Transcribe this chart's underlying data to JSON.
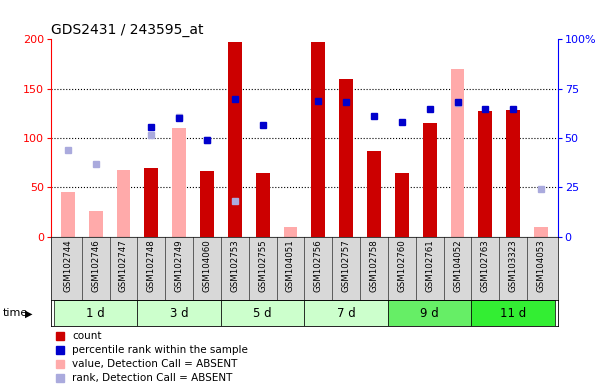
{
  "title": "GDS2431 / 243595_at",
  "samples": [
    "GSM102744",
    "GSM102746",
    "GSM102747",
    "GSM102748",
    "GSM102749",
    "GSM104060",
    "GSM102753",
    "GSM102755",
    "GSM104051",
    "GSM102756",
    "GSM102757",
    "GSM102758",
    "GSM102760",
    "GSM102761",
    "GSM104052",
    "GSM102763",
    "GSM103323",
    "GSM104053"
  ],
  "time_groups": [
    {
      "label": "1 d",
      "start": 0,
      "end": 3,
      "color": "#ccffcc"
    },
    {
      "label": "3 d",
      "start": 3,
      "end": 6,
      "color": "#ccffcc"
    },
    {
      "label": "5 d",
      "start": 6,
      "end": 9,
      "color": "#ccffcc"
    },
    {
      "label": "7 d",
      "start": 9,
      "end": 12,
      "color": "#ccffcc"
    },
    {
      "label": "9 d",
      "start": 12,
      "end": 15,
      "color": "#66ee66"
    },
    {
      "label": "11 d",
      "start": 15,
      "end": 18,
      "color": "#33ee33"
    }
  ],
  "count": [
    null,
    null,
    null,
    70,
    null,
    67,
    197,
    65,
    null,
    197,
    160,
    87,
    65,
    115,
    null,
    127,
    128,
    null
  ],
  "percentile_rank": [
    null,
    null,
    null,
    111,
    120,
    98,
    139,
    113,
    null,
    137,
    136,
    122,
    116,
    129,
    136,
    129,
    129,
    null
  ],
  "value_absent": [
    45,
    26,
    68,
    null,
    110,
    null,
    null,
    null,
    10,
    null,
    null,
    null,
    null,
    null,
    170,
    null,
    null,
    10
  ],
  "rank_absent": [
    88,
    74,
    null,
    103,
    121,
    98,
    36,
    null,
    null,
    null,
    null,
    null,
    null,
    null,
    135,
    null,
    null,
    48
  ],
  "ylim_left": [
    0,
    200
  ],
  "ylim_right": [
    0,
    100
  ],
  "yticks_left": [
    0,
    50,
    100,
    150,
    200
  ],
  "yticks_right": [
    0,
    25,
    50,
    75,
    100
  ],
  "yticklabels_right": [
    "0",
    "25",
    "50",
    "75",
    "100%"
  ],
  "color_count": "#cc0000",
  "color_percentile": "#0000cc",
  "color_value_absent": "#ffaaaa",
  "color_rank_absent": "#aaaadd",
  "bar_width": 0.5,
  "marker_size": 5,
  "label_bg": "#d8d8d8",
  "plot_bg": "#ffffff"
}
